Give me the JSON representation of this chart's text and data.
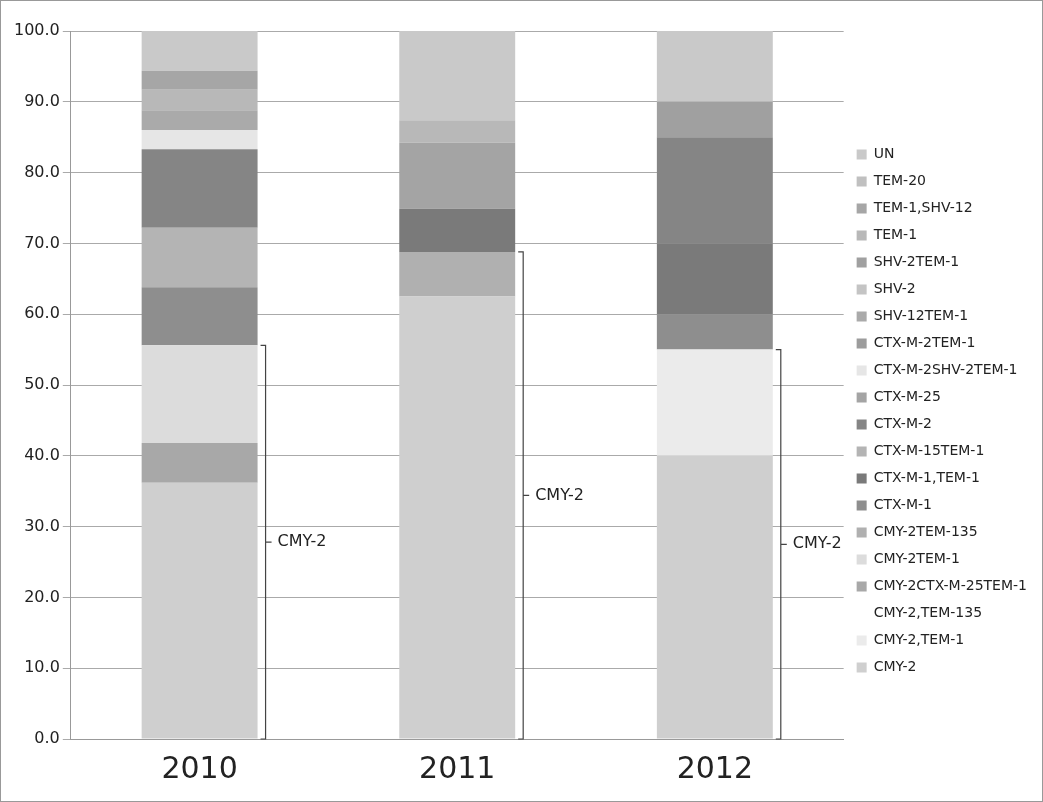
{
  "chart_data": {
    "type": "bar",
    "stacked": true,
    "categories": [
      "2010",
      "2011",
      "2012"
    ],
    "ylim": [
      0,
      100
    ],
    "yticks": [
      {
        "value": 0,
        "label": "0.0"
      },
      {
        "value": 10,
        "label": "10.0"
      },
      {
        "value": 20,
        "label": "20.0"
      },
      {
        "value": 30,
        "label": "30.0"
      },
      {
        "value": 40,
        "label": "40.0"
      },
      {
        "value": 50,
        "label": "50.0"
      },
      {
        "value": 60,
        "label": "60.0"
      },
      {
        "value": 70,
        "label": "70.0"
      },
      {
        "value": 80,
        "label": "80.0"
      },
      {
        "value": 90,
        "label": "90.0"
      },
      {
        "value": 100,
        "label": "100.0"
      }
    ],
    "grid": "y",
    "legend": "right",
    "series": [
      {
        "name": "CMY-2",
        "color": "#cfcfcf",
        "values": [
          36.2,
          62.5,
          40
        ]
      },
      {
        "name": "CMY-2,TEM-1",
        "color": "#ebebeb",
        "values": [
          0,
          0,
          15
        ]
      },
      {
        "name": "CMY-2,TEM-135",
        "values": [
          0,
          0,
          0
        ]
      },
      {
        "name": "CMY-2CTX-M-25TEM-1",
        "color": "#a8a8a8",
        "values": [
          5.6,
          0,
          0
        ]
      },
      {
        "name": "CMY-2TEM-1",
        "color": "#dcdcdc",
        "values": [
          13.8,
          0,
          0
        ]
      },
      {
        "name": "CMY-2TEM-135",
        "color": "#b0b0b0",
        "values": [
          0,
          6.3,
          0
        ]
      },
      {
        "name": "CTX-M-1",
        "color": "#8e8e8e",
        "values": [
          8.2,
          0,
          5
        ]
      },
      {
        "name": "CTX-M-1,TEM-1",
        "color": "#7a7a7a",
        "values": [
          0,
          6.1,
          10
        ]
      },
      {
        "name": "CTX-M-15TEM-1",
        "color": "#b4b4b4",
        "values": [
          8.4,
          0,
          0
        ]
      },
      {
        "name": "CTX-M-2",
        "color": "#858585",
        "values": [
          11.1,
          0,
          15
        ]
      },
      {
        "name": "CTX-M-25",
        "color": "#a4a4a4",
        "values": [
          0,
          9.3,
          0
        ]
      },
      {
        "name": "CTX-M-2SHV-2TEM-1",
        "color": "#e6e6e6",
        "values": [
          2.7,
          0,
          0
        ]
      },
      {
        "name": "CTX-M-2TEM-1",
        "color": "#9c9c9c",
        "values": [
          0,
          0,
          0
        ]
      },
      {
        "name": "SHV-12TEM-1",
        "color": "#aaaaaa",
        "values": [
          2.8,
          0,
          0
        ]
      },
      {
        "name": "SHV-2",
        "color": "#c4c4c4",
        "values": [
          0,
          0,
          0
        ]
      },
      {
        "name": "SHV-2TEM-1",
        "color": "#a0a0a0",
        "values": [
          0,
          0,
          5
        ]
      },
      {
        "name": "TEM-1",
        "color": "#b8b8b8",
        "values": [
          2.9,
          3.2,
          0
        ]
      },
      {
        "name": "TEM-1,SHV-12",
        "color": "#a6a6a6",
        "values": [
          2.7,
          0,
          0
        ]
      },
      {
        "name": "TEM-20",
        "color": "#c0c0c0",
        "values": [
          0,
          0,
          0
        ]
      },
      {
        "name": "UN",
        "color": "#c9c9c9",
        "values": [
          5.6,
          12.6,
          10
        ]
      }
    ],
    "annotations": [
      "CMY-2",
      "CMY-2",
      "CMY-2"
    ]
  }
}
